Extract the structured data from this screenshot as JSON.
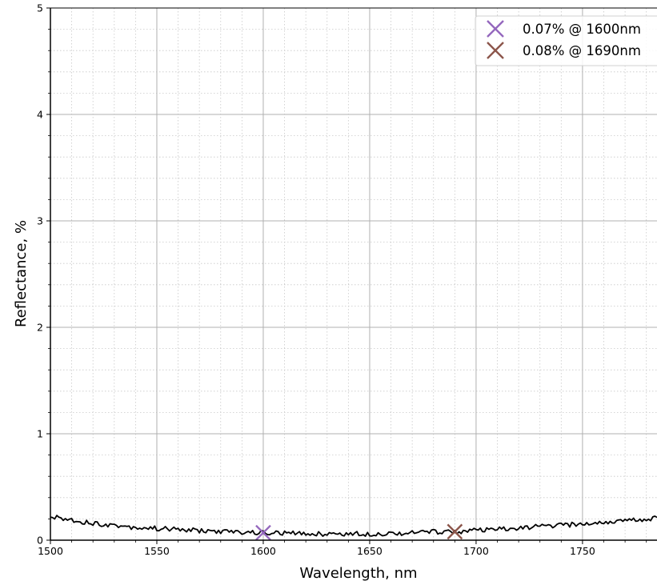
{
  "chart_data": {
    "type": "line",
    "xlabel": "Wavelength, nm",
    "ylabel": "Reflectance, %",
    "xlim": [
      1500,
      1785
    ],
    "ylim": [
      0,
      5
    ],
    "xticks": [
      1500,
      1550,
      1600,
      1650,
      1700,
      1750
    ],
    "yticks": [
      0,
      1,
      2,
      3,
      4,
      5
    ],
    "grid": {
      "major": true,
      "minor": true
    },
    "legend_position": "top-right",
    "series": [
      {
        "color": "#000000",
        "x": [
          1500,
          1510,
          1520,
          1530,
          1540,
          1550,
          1560,
          1570,
          1580,
          1590,
          1600,
          1610,
          1620,
          1630,
          1640,
          1650,
          1660,
          1670,
          1680,
          1690,
          1700,
          1710,
          1720,
          1730,
          1740,
          1750,
          1760,
          1770,
          1780,
          1785
        ],
        "y": [
          0.22,
          0.19,
          0.16,
          0.14,
          0.12,
          0.11,
          0.1,
          0.09,
          0.08,
          0.075,
          0.07,
          0.065,
          0.06,
          0.06,
          0.06,
          0.06,
          0.065,
          0.07,
          0.08,
          0.08,
          0.09,
          0.1,
          0.11,
          0.13,
          0.14,
          0.15,
          0.17,
          0.18,
          0.2,
          0.21
        ]
      }
    ],
    "markers": [
      {
        "label": "0.07% @ 1600nm",
        "x": 1600,
        "y": 0.07,
        "color": "#9467bd"
      },
      {
        "label": "0.08% @ 1690nm",
        "x": 1690,
        "y": 0.08,
        "color": "#8c564b"
      }
    ]
  }
}
